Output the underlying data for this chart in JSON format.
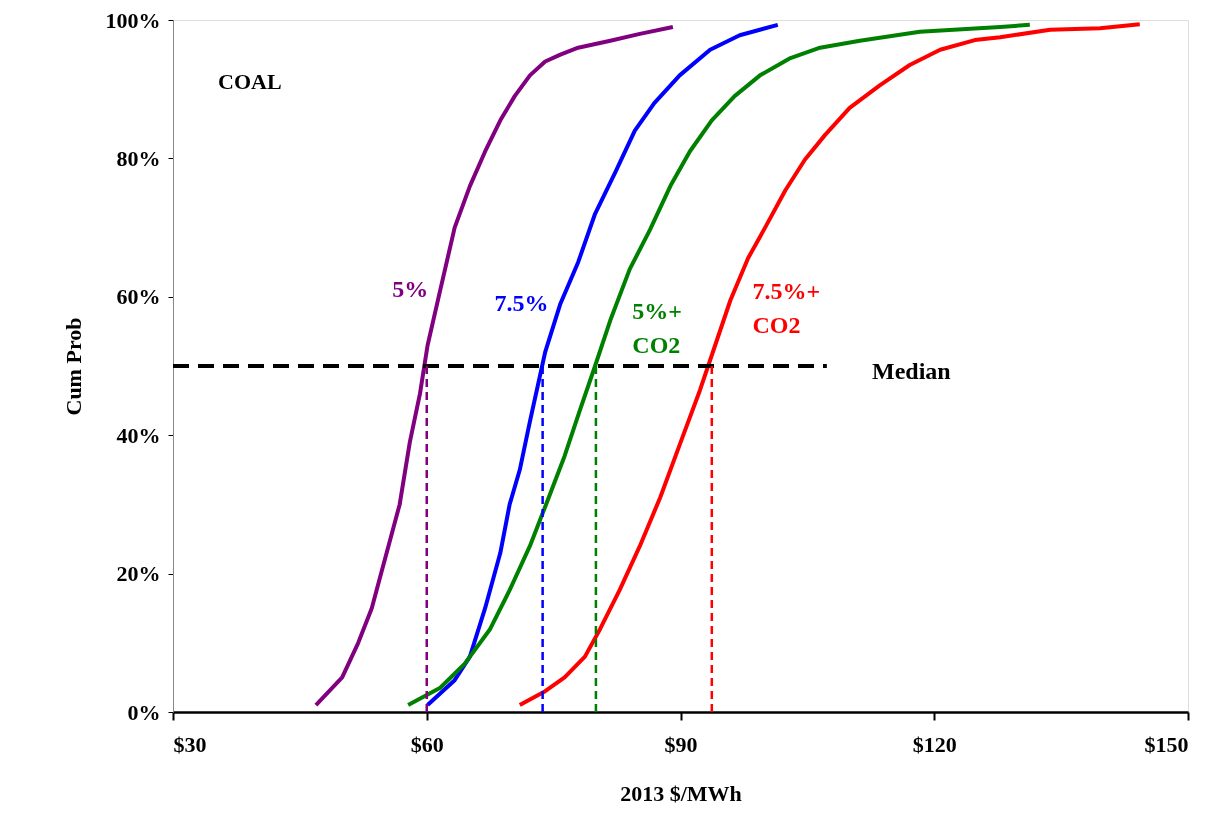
{
  "chart_data": {
    "type": "line",
    "xlabel": "2013 $/MWh",
    "ylabel": "Cum Prob",
    "xlim": [
      30,
      150
    ],
    "xticks": [
      {
        "value": 30,
        "label": "$30"
      },
      {
        "value": 60,
        "label": "$60"
      },
      {
        "value": 90,
        "label": "$90"
      },
      {
        "value": 120,
        "label": "$120"
      },
      {
        "value": 150,
        "label": "$150"
      }
    ],
    "ylim": [
      0,
      100
    ],
    "yticks": [
      {
        "value": 0,
        "label": "0%"
      },
      {
        "value": 20,
        "label": "20%"
      },
      {
        "value": 40,
        "label": "40%"
      },
      {
        "value": 60,
        "label": "60%"
      },
      {
        "value": 80,
        "label": "80%"
      },
      {
        "value": 100,
        "label": "100%"
      }
    ],
    "grid": false,
    "line_style": "solid",
    "annotations": [
      "COAL",
      "Median"
    ],
    "series": [
      {
        "name": "5%",
        "color": "#800080",
        "x": [
          46.9,
          50,
          51.9,
          53.5,
          54.6,
          55.7,
          56.8,
          58,
          59.2,
          60.1,
          61.6,
          63.3,
          65.1,
          66.9,
          68.7,
          70.4,
          72.2,
          74,
          75.8,
          77.9,
          81.7,
          85.2,
          89.1
        ],
        "values": [
          1,
          5,
          10,
          15,
          20,
          25,
          30,
          39,
          46,
          53,
          61,
          70,
          76,
          81,
          85.5,
          89,
          92,
          94,
          95,
          96,
          97,
          98,
          99
        ]
      },
      {
        "name": "7.5%",
        "color": "#0000ff",
        "x": [
          60.1,
          63.3,
          65.1,
          66.9,
          68.7,
          69.8,
          71,
          72.2,
          74,
          75.8,
          77.9,
          79.9,
          82.3,
          84.6,
          86.9,
          89.9,
          93.5,
          97,
          101.5
        ],
        "values": [
          1,
          4.6,
          8,
          15,
          23,
          30,
          35,
          42,
          52,
          59,
          65,
          72,
          78,
          84,
          88,
          92,
          95.7,
          97.8,
          99.3
        ]
      },
      {
        "name": "5%+\nCO2",
        "color": "#008000",
        "x": [
          57.8,
          61.6,
          64.5,
          67.5,
          69.8,
          72.2,
          74.3,
          76.3,
          78.1,
          79.9,
          81.7,
          84,
          86.4,
          88.8,
          91.1,
          93.7,
          96.4,
          99.4,
          103,
          106.5,
          111.2,
          118.3,
          127.8,
          131.3
        ],
        "values": [
          1,
          3.5,
          7,
          12,
          17.6,
          24,
          30.6,
          37,
          43.6,
          50,
          56.6,
          64,
          69.7,
          76,
          81,
          85.5,
          89,
          92,
          94.5,
          96,
          97,
          98.3,
          99,
          99.3
        ]
      },
      {
        "name": "7.5%+\nCO2",
        "color": "#ff0000",
        "x": [
          71,
          74,
          76.3,
          78.7,
          80.5,
          82.8,
          85.2,
          87.6,
          89.9,
          92.3,
          94.1,
          95.9,
          98,
          100,
          102.4,
          104.7,
          107.1,
          110,
          113.6,
          117.1,
          120.7,
          124.8,
          127.8,
          133.7,
          139.6,
          144.3
        ],
        "values": [
          1,
          3,
          5,
          8,
          12,
          17.6,
          24,
          31,
          38.6,
          46.5,
          53,
          59.5,
          65.6,
          70,
          75.4,
          79.8,
          83.4,
          87.3,
          90.6,
          93.5,
          95.7,
          97.1,
          97.5,
          98.6,
          98.8,
          99.4
        ]
      },
      {
        "color": "#000000",
        "line_style": "dashed",
        "x": [
          30,
          107.3
        ],
        "values": [
          50,
          50
        ]
      },
      {
        "color": "#800080",
        "line_style": "dashed",
        "x": [
          60,
          60
        ],
        "values": [
          50,
          0
        ]
      },
      {
        "color": "#0000ff",
        "line_style": "dashed",
        "x": [
          73.7,
          73.7
        ],
        "values": [
          50,
          0
        ]
      },
      {
        "color": "#008000",
        "line_style": "dashed",
        "x": [
          80,
          80
        ],
        "values": [
          50,
          0
        ]
      },
      {
        "color": "#ff0000",
        "line_style": "dashed",
        "x": [
          93.7,
          93.7
        ],
        "values": [
          50,
          0
        ]
      }
    ]
  }
}
